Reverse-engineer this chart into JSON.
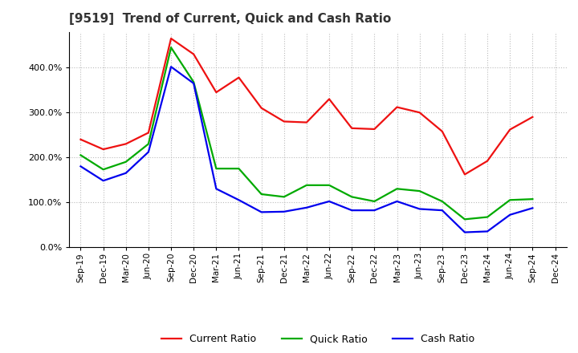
{
  "title": "[9519]  Trend of Current, Quick and Cash Ratio",
  "x_labels": [
    "Sep-19",
    "Dec-19",
    "Mar-20",
    "Jun-20",
    "Sep-20",
    "Dec-20",
    "Mar-21",
    "Jun-21",
    "Sep-21",
    "Dec-21",
    "Mar-22",
    "Jun-22",
    "Sep-22",
    "Dec-22",
    "Mar-23",
    "Jun-23",
    "Sep-23",
    "Dec-23",
    "Mar-24",
    "Jun-24",
    "Sep-24",
    "Dec-24"
  ],
  "current_ratio": [
    2.4,
    2.18,
    2.3,
    2.55,
    4.65,
    4.3,
    3.45,
    3.78,
    3.1,
    2.8,
    2.78,
    3.3,
    2.65,
    2.63,
    3.12,
    3.0,
    2.58,
    1.62,
    1.92,
    2.62,
    2.9,
    null
  ],
  "quick_ratio": [
    2.05,
    1.73,
    1.9,
    2.3,
    4.45,
    3.68,
    1.75,
    1.75,
    1.18,
    1.12,
    1.38,
    1.38,
    1.12,
    1.02,
    1.3,
    1.25,
    1.02,
    0.62,
    0.67,
    1.05,
    1.07,
    null
  ],
  "cash_ratio": [
    1.8,
    1.48,
    1.65,
    2.12,
    4.02,
    3.65,
    1.3,
    1.05,
    0.78,
    0.79,
    0.88,
    1.02,
    0.82,
    0.82,
    1.02,
    0.85,
    0.82,
    0.33,
    0.35,
    0.72,
    0.87,
    null
  ],
  "current_color": "#EE1111",
  "quick_color": "#00AA00",
  "cash_color": "#0000EE",
  "ylim_max": 4.8,
  "ytick_vals": [
    0.0,
    1.0,
    2.0,
    3.0,
    4.0
  ],
  "background_color": "#FFFFFF",
  "grid_color": "#BBBBBB",
  "title_fontsize": 11,
  "tick_fontsize": 7.5,
  "legend_fontsize": 9
}
